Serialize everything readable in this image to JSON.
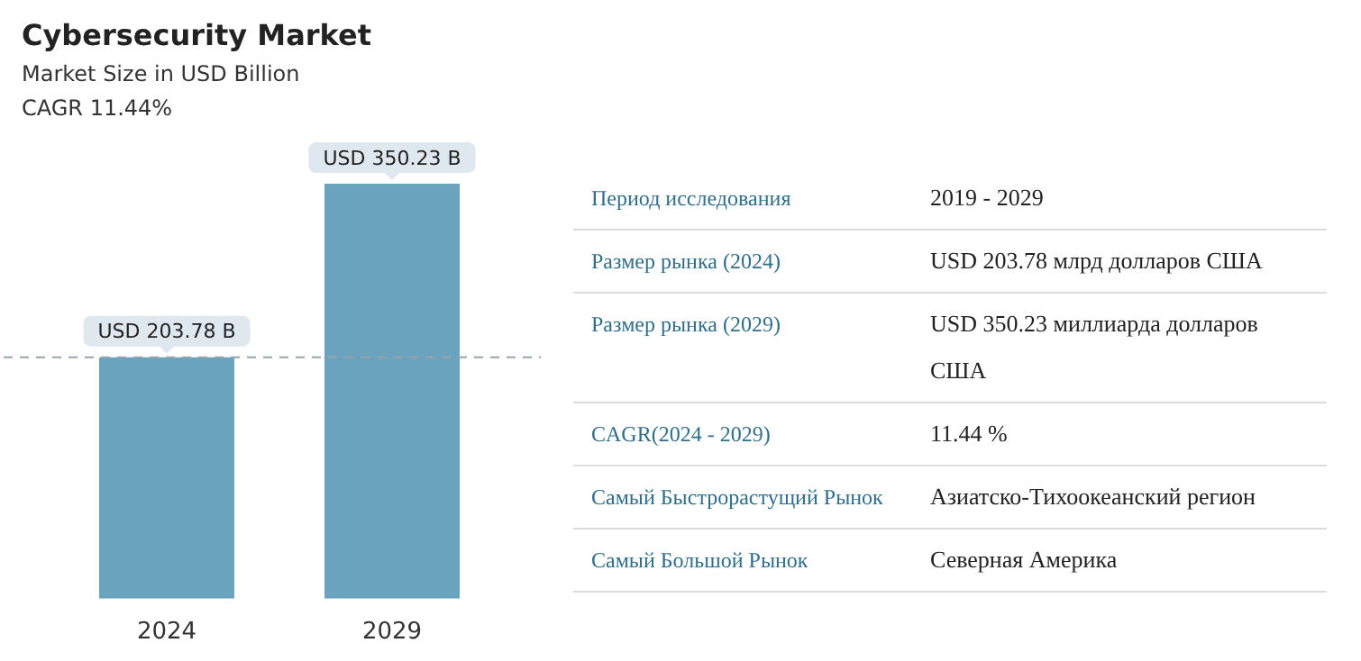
{
  "chart_data": [
    {
      "type": "bar",
      "title": "Cybersecurity Market",
      "subtitle": "Market Size in USD Billion",
      "annotations": [
        "CAGR 11.44%"
      ],
      "categories": [
        "2024",
        "2029"
      ],
      "values": [
        203.78,
        350.23
      ],
      "color": "#6aa3be",
      "value_labels": [
        "USD 203.78 B",
        "USD 350.23 B"
      ],
      "ref_lines": [
        {
          "axis": "y",
          "value": 203.78,
          "color": "#9aa3ab",
          "line_style": "dashed"
        }
      ],
      "grid": false,
      "legend": false,
      "tick_labels": "x"
    },
    {
      "type": "other",
      "annotations": [
        "Период исследования",
        "2019 - 2029",
        "Размер рынка (2024)",
        "USD 203.78 млрд долларов США",
        "Размер рынка (2029)",
        "USD 350.23 миллиарда долларов США",
        "CAGR(2024 - 2029)",
        "11.44 %",
        "Самый Быстрорастущий Рынок",
        "Азиатско-Тихоокеанский регион",
        "Самый Большой Рынок",
        "Северная Америка"
      ]
    }
  ]
}
